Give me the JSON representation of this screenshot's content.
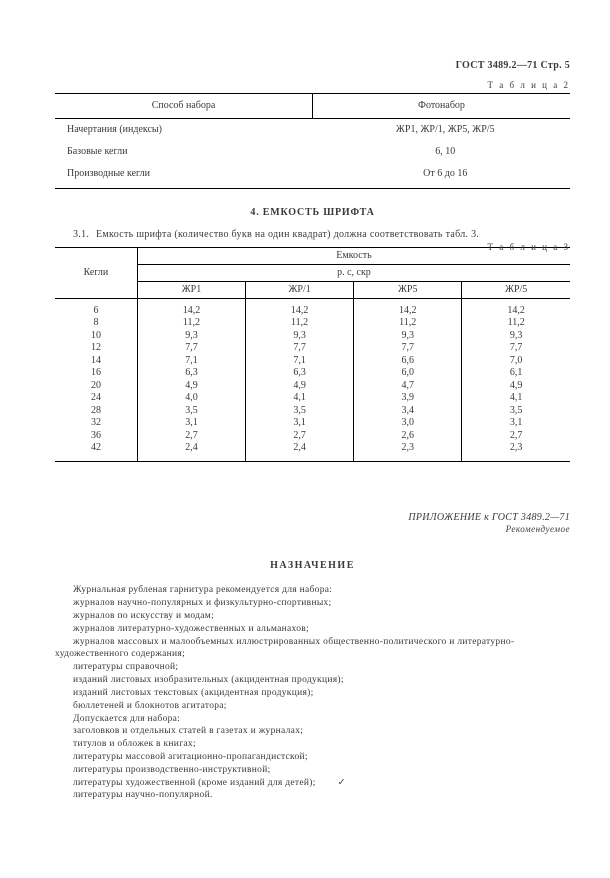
{
  "header": {
    "doc_ref": "ГОСТ 3489.2—71 Стр. 5"
  },
  "table2": {
    "label": "Т а б л и ц а 2",
    "headers": [
      "Способ набора",
      "Фотонабор"
    ],
    "rows": [
      {
        "label": "Начертания (индексы)",
        "value": "ЖР1, ЖР/1, ЖР5, ЖР/5"
      },
      {
        "label": "Базовые кегли",
        "value": "6, 10"
      },
      {
        "label": "Производные кегли",
        "value": "От 6 до 16"
      }
    ]
  },
  "section4": {
    "title": "4. ЕМКОСТЬ ШРИФТА"
  },
  "para31": {
    "num": "3.1.",
    "text": "Емкость шрифта (количество букв на один квадрат) должна соответствовать табл. 3."
  },
  "table3": {
    "label": "Т а б л и ц а 3",
    "col_kegli": "Кегли",
    "col_emkost": "Емкость",
    "col_rskp": "р. с, скр",
    "subcols": [
      "ЖР1",
      "ЖР/1",
      "ЖР5",
      "ЖР/5"
    ],
    "rows": [
      {
        "k": "6",
        "v1": "14,2",
        "v2": "14,2",
        "v3": "14,2",
        "v4": "14,2"
      },
      {
        "k": "8",
        "v1": "11,2",
        "v2": "11,2",
        "v3": "11,2",
        "v4": "11,2"
      },
      {
        "k": "10",
        "v1": "9,3",
        "v2": "9,3",
        "v3": "9,3",
        "v4": "9,3"
      },
      {
        "k": "12",
        "v1": "7,7",
        "v2": "7,7",
        "v3": "7,7",
        "v4": "7,7"
      },
      {
        "k": "14",
        "v1": "7,1",
        "v2": "7,1",
        "v3": "6,6",
        "v4": "7,0"
      },
      {
        "k": "16",
        "v1": "6,3",
        "v2": "6,3",
        "v3": "6,0",
        "v4": "6,1"
      },
      {
        "k": "20",
        "v1": "4,9",
        "v2": "4,9",
        "v3": "4,7",
        "v4": "4,9"
      },
      {
        "k": "24",
        "v1": "4,0",
        "v2": "4,1",
        "v3": "3,9",
        "v4": "4,1"
      },
      {
        "k": "28",
        "v1": "3,5",
        "v2": "3,5",
        "v3": "3,4",
        "v4": "3,5"
      },
      {
        "k": "32",
        "v1": "3,1",
        "v2": "3,1",
        "v3": "3,0",
        "v4": "3,1"
      },
      {
        "k": "36",
        "v1": "2,7",
        "v2": "2,7",
        "v3": "2,6",
        "v4": "2,7"
      },
      {
        "k": "42",
        "v1": "2,4",
        "v2": "2,4",
        "v3": "2,3",
        "v4": "2,3"
      }
    ]
  },
  "appendix": {
    "line1": "ПРИЛОЖЕНИЕ к ГОСТ 3489.2—71",
    "line2": "Рекомендуемое"
  },
  "naznach": {
    "title": "НАЗНАЧЕНИЕ",
    "lines": [
      "Журнальная рубленая гарнитура рекомендуется для набора:",
      "журналов научно-популярных и физкультурно-спортивных;",
      "журналов по искусству и модам;",
      "журналов литературно-художественных и альманахов;",
      "журналов массовых и малообъемных иллюстрированных общественно-политического и литературно-художественного содержания;",
      "литературы справочной;",
      "изданий листовых изобразительных (акцидентная продукция);",
      "изданий листовых текстовых (акцидентная продукция);",
      "бюллетеней и блокнотов агитатора;",
      "Допускается для набора:",
      "заголовков и отдельных статей в газетах и журналах;",
      "титулов и обложек в книгах;",
      "литературы массовой агитационно-пропагандистской;",
      "литературы производственно-инструктивной;",
      "литературы художественной (кроме изданий для детей);",
      "литературы научно-популярной."
    ],
    "tick": "✓"
  }
}
